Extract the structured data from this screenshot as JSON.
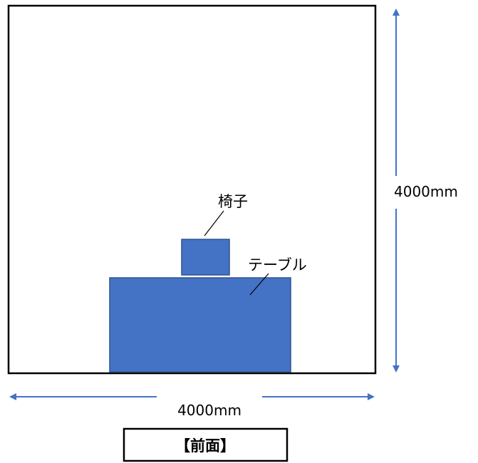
{
  "diagram": {
    "room": {
      "width_label": "4000mm",
      "height_label": "4000mm"
    },
    "objects": [
      {
        "id": "chair",
        "label": "椅子"
      },
      {
        "id": "table",
        "label": "テーブル"
      }
    ],
    "view_title": "【前面】",
    "colors": {
      "object_fill": "#4472C4",
      "object_stroke": "#2F528F",
      "arrow": "#4472C4",
      "outline": "#000000"
    }
  }
}
